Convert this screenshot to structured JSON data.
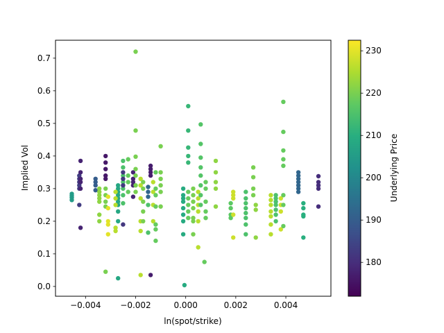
{
  "chart_data": {
    "type": "scatter",
    "title": "",
    "xlabel": "ln(spot/strike)",
    "ylabel": "Implied Vol",
    "colorbar_label": "Underlying Price",
    "colormap": "viridis",
    "xlim": [
      -0.0052,
      0.0058
    ],
    "ylim": [
      -0.03,
      0.755
    ],
    "clim": [
      172,
      232.5
    ],
    "xticks": [
      -0.004,
      -0.002,
      0.0,
      0.002,
      0.004
    ],
    "xtick_labels": [
      "−0.004",
      "−0.002",
      "0.000",
      "0.002",
      "0.004"
    ],
    "yticks": [
      0.0,
      0.1,
      0.2,
      0.3,
      0.4,
      0.5,
      0.6,
      0.7
    ],
    "ytick_labels": [
      "0.0",
      "0.1",
      "0.2",
      "0.3",
      "0.4",
      "0.5",
      "0.6",
      "0.7"
    ],
    "cticks": [
      180,
      190,
      200,
      210,
      220,
      230
    ],
    "ctick_labels": [
      "180",
      "190",
      "200",
      "210",
      "220",
      "230"
    ],
    "grid": false,
    "legend": "none",
    "points": [
      {
        "x": -0.00455,
        "y": 0.265,
        "c": 205
      },
      {
        "x": -0.00455,
        "y": 0.272,
        "c": 205
      },
      {
        "x": -0.00455,
        "y": 0.278,
        "c": 205
      },
      {
        "x": -0.00455,
        "y": 0.284,
        "c": 205
      },
      {
        "x": -0.00425,
        "y": 0.3,
        "c": 183
      },
      {
        "x": -0.00425,
        "y": 0.31,
        "c": 183
      },
      {
        "x": -0.00425,
        "y": 0.32,
        "c": 183
      },
      {
        "x": -0.00425,
        "y": 0.33,
        "c": 183
      },
      {
        "x": -0.00425,
        "y": 0.34,
        "c": 183
      },
      {
        "x": -0.00425,
        "y": 0.25,
        "c": 183
      },
      {
        "x": -0.0042,
        "y": 0.385,
        "c": 178
      },
      {
        "x": -0.0042,
        "y": 0.35,
        "c": 178
      },
      {
        "x": -0.0042,
        "y": 0.33,
        "c": 178
      },
      {
        "x": -0.0042,
        "y": 0.32,
        "c": 178
      },
      {
        "x": -0.0042,
        "y": 0.3,
        "c": 178
      },
      {
        "x": -0.0042,
        "y": 0.18,
        "c": 178
      },
      {
        "x": -0.0036,
        "y": 0.33,
        "c": 190
      },
      {
        "x": -0.0036,
        "y": 0.32,
        "c": 190
      },
      {
        "x": -0.0036,
        "y": 0.31,
        "c": 190
      },
      {
        "x": -0.0036,
        "y": 0.295,
        "c": 190
      },
      {
        "x": -0.00345,
        "y": 0.26,
        "c": 222
      },
      {
        "x": -0.00345,
        "y": 0.27,
        "c": 222
      },
      {
        "x": -0.00345,
        "y": 0.28,
        "c": 222
      },
      {
        "x": -0.00345,
        "y": 0.29,
        "c": 222
      },
      {
        "x": -0.00345,
        "y": 0.3,
        "c": 222
      },
      {
        "x": -0.00345,
        "y": 0.22,
        "c": 222
      },
      {
        "x": -0.00345,
        "y": 0.2,
        "c": 222
      },
      {
        "x": -0.0032,
        "y": 0.4,
        "c": 176
      },
      {
        "x": -0.0032,
        "y": 0.38,
        "c": 176
      },
      {
        "x": -0.0032,
        "y": 0.36,
        "c": 176
      },
      {
        "x": -0.0032,
        "y": 0.34,
        "c": 176
      },
      {
        "x": -0.0032,
        "y": 0.33,
        "c": 176
      },
      {
        "x": -0.0032,
        "y": 0.3,
        "c": 220
      },
      {
        "x": -0.0032,
        "y": 0.28,
        "c": 220
      },
      {
        "x": -0.0032,
        "y": 0.26,
        "c": 220
      },
      {
        "x": -0.0032,
        "y": 0.245,
        "c": 220
      },
      {
        "x": -0.0032,
        "y": 0.045,
        "c": 220
      },
      {
        "x": -0.0031,
        "y": 0.2,
        "c": 230
      },
      {
        "x": -0.0031,
        "y": 0.19,
        "c": 230
      },
      {
        "x": -0.0031,
        "y": 0.16,
        "c": 230
      },
      {
        "x": -0.0031,
        "y": 0.24,
        "c": 230
      },
      {
        "x": -0.0031,
        "y": 0.275,
        "c": 230
      },
      {
        "x": -0.0027,
        "y": 0.31,
        "c": 208
      },
      {
        "x": -0.0027,
        "y": 0.3,
        "c": 208
      },
      {
        "x": -0.0027,
        "y": 0.29,
        "c": 208
      },
      {
        "x": -0.0027,
        "y": 0.28,
        "c": 208
      },
      {
        "x": -0.0027,
        "y": 0.27,
        "c": 208
      },
      {
        "x": -0.0027,
        "y": 0.26,
        "c": 208
      },
      {
        "x": -0.0027,
        "y": 0.25,
        "c": 208
      },
      {
        "x": -0.0027,
        "y": 0.23,
        "c": 208
      },
      {
        "x": -0.0027,
        "y": 0.2,
        "c": 208
      },
      {
        "x": -0.0027,
        "y": 0.025,
        "c": 208
      },
      {
        "x": -0.0028,
        "y": 0.29,
        "c": 226
      },
      {
        "x": -0.0028,
        "y": 0.27,
        "c": 226
      },
      {
        "x": -0.0028,
        "y": 0.25,
        "c": 226
      },
      {
        "x": -0.0028,
        "y": 0.18,
        "c": 226
      },
      {
        "x": -0.0028,
        "y": 0.17,
        "c": 226
      },
      {
        "x": -0.0025,
        "y": 0.385,
        "c": 215
      },
      {
        "x": -0.0025,
        "y": 0.365,
        "c": 215
      },
      {
        "x": -0.0025,
        "y": 0.34,
        "c": 215
      },
      {
        "x": -0.0025,
        "y": 0.32,
        "c": 215
      },
      {
        "x": -0.0025,
        "y": 0.3,
        "c": 215
      },
      {
        "x": -0.0025,
        "y": 0.28,
        "c": 215
      },
      {
        "x": -0.0025,
        "y": 0.255,
        "c": 215
      },
      {
        "x": -0.0025,
        "y": 0.35,
        "c": 182
      },
      {
        "x": -0.0025,
        "y": 0.33,
        "c": 182
      },
      {
        "x": -0.0025,
        "y": 0.31,
        "c": 182
      },
      {
        "x": -0.0025,
        "y": 0.19,
        "c": 182
      },
      {
        "x": -0.0023,
        "y": 0.39,
        "c": 218
      },
      {
        "x": -0.0023,
        "y": 0.34,
        "c": 218
      },
      {
        "x": -0.0023,
        "y": 0.32,
        "c": 218
      },
      {
        "x": -0.0023,
        "y": 0.29,
        "c": 218
      },
      {
        "x": -0.0021,
        "y": 0.35,
        "c": 178
      },
      {
        "x": -0.0021,
        "y": 0.33,
        "c": 178
      },
      {
        "x": -0.0021,
        "y": 0.32,
        "c": 178
      },
      {
        "x": -0.0021,
        "y": 0.31,
        "c": 178
      },
      {
        "x": -0.0021,
        "y": 0.275,
        "c": 178
      },
      {
        "x": -0.002,
        "y": 0.72,
        "c": 220
      },
      {
        "x": -0.002,
        "y": 0.478,
        "c": 220
      },
      {
        "x": -0.002,
        "y": 0.398,
        "c": 220
      },
      {
        "x": -0.002,
        "y": 0.36,
        "c": 220
      },
      {
        "x": -0.002,
        "y": 0.34,
        "c": 220
      },
      {
        "x": -0.002,
        "y": 0.31,
        "c": 220
      },
      {
        "x": -0.002,
        "y": 0.29,
        "c": 220
      },
      {
        "x": -0.0018,
        "y": 0.33,
        "c": 226
      },
      {
        "x": -0.0018,
        "y": 0.31,
        "c": 226
      },
      {
        "x": -0.0018,
        "y": 0.27,
        "c": 226
      },
      {
        "x": -0.0018,
        "y": 0.2,
        "c": 226
      },
      {
        "x": -0.0018,
        "y": 0.17,
        "c": 226
      },
      {
        "x": -0.0018,
        "y": 0.035,
        "c": 226
      },
      {
        "x": -0.0017,
        "y": 0.32,
        "c": 220
      },
      {
        "x": -0.0017,
        "y": 0.3,
        "c": 220
      },
      {
        "x": -0.0017,
        "y": 0.26,
        "c": 220
      },
      {
        "x": -0.0017,
        "y": 0.23,
        "c": 220
      },
      {
        "x": -0.0017,
        "y": 0.2,
        "c": 220
      },
      {
        "x": -0.0015,
        "y": 0.305,
        "c": 192
      },
      {
        "x": -0.0015,
        "y": 0.29,
        "c": 192
      },
      {
        "x": -0.0015,
        "y": 0.275,
        "c": 192
      },
      {
        "x": -0.0015,
        "y": 0.25,
        "c": 215
      },
      {
        "x": -0.0015,
        "y": 0.165,
        "c": 215
      },
      {
        "x": -0.0014,
        "y": 0.37,
        "c": 177
      },
      {
        "x": -0.0014,
        "y": 0.36,
        "c": 177
      },
      {
        "x": -0.0014,
        "y": 0.35,
        "c": 177
      },
      {
        "x": -0.0014,
        "y": 0.34,
        "c": 177
      },
      {
        "x": -0.0014,
        "y": 0.035,
        "c": 177
      },
      {
        "x": -0.0013,
        "y": 0.32,
        "c": 226
      },
      {
        "x": -0.0013,
        "y": 0.29,
        "c": 226
      },
      {
        "x": -0.0013,
        "y": 0.25,
        "c": 226
      },
      {
        "x": -0.0013,
        "y": 0.2,
        "c": 226
      },
      {
        "x": -0.0012,
        "y": 0.35,
        "c": 218
      },
      {
        "x": -0.0012,
        "y": 0.3,
        "c": 218
      },
      {
        "x": -0.0012,
        "y": 0.28,
        "c": 218
      },
      {
        "x": -0.0012,
        "y": 0.245,
        "c": 218
      },
      {
        "x": -0.0012,
        "y": 0.19,
        "c": 218
      },
      {
        "x": -0.0012,
        "y": 0.175,
        "c": 218
      },
      {
        "x": -0.0012,
        "y": 0.14,
        "c": 218
      },
      {
        "x": -0.001,
        "y": 0.43,
        "c": 220
      },
      {
        "x": -0.001,
        "y": 0.35,
        "c": 220
      },
      {
        "x": -0.001,
        "y": 0.33,
        "c": 220
      },
      {
        "x": -0.001,
        "y": 0.31,
        "c": 220
      },
      {
        "x": -0.001,
        "y": 0.29,
        "c": 220
      },
      {
        "x": -0.001,
        "y": 0.245,
        "c": 220
      },
      {
        "x": -0.0001,
        "y": 0.3,
        "c": 209
      },
      {
        "x": -0.0001,
        "y": 0.28,
        "c": 209
      },
      {
        "x": -0.0001,
        "y": 0.27,
        "c": 209
      },
      {
        "x": -0.0001,
        "y": 0.26,
        "c": 209
      },
      {
        "x": -0.0001,
        "y": 0.24,
        "c": 209
      },
      {
        "x": -0.0001,
        "y": 0.22,
        "c": 209
      },
      {
        "x": -0.0001,
        "y": 0.2,
        "c": 209
      },
      {
        "x": -0.0001,
        "y": 0.16,
        "c": 209
      },
      {
        "x": -5e-05,
        "y": 0.004,
        "c": 209
      },
      {
        "x": 0.0001,
        "y": 0.553,
        "c": 212
      },
      {
        "x": 0.0001,
        "y": 0.478,
        "c": 212
      },
      {
        "x": 0.0001,
        "y": 0.426,
        "c": 212
      },
      {
        "x": 0.0001,
        "y": 0.4,
        "c": 212
      },
      {
        "x": 0.0001,
        "y": 0.38,
        "c": 212
      },
      {
        "x": 0.0001,
        "y": 0.29,
        "c": 218
      },
      {
        "x": 0.0001,
        "y": 0.27,
        "c": 218
      },
      {
        "x": 0.0001,
        "y": 0.25,
        "c": 218
      },
      {
        "x": 0.0001,
        "y": 0.23,
        "c": 218
      },
      {
        "x": 0.0001,
        "y": 0.21,
        "c": 218
      },
      {
        "x": 0.0003,
        "y": 0.3,
        "c": 220
      },
      {
        "x": 0.0003,
        "y": 0.28,
        "c": 220
      },
      {
        "x": 0.0003,
        "y": 0.26,
        "c": 220
      },
      {
        "x": 0.0003,
        "y": 0.24,
        "c": 220
      },
      {
        "x": 0.0003,
        "y": 0.21,
        "c": 220
      },
      {
        "x": 0.0003,
        "y": 0.2,
        "c": 220
      },
      {
        "x": 0.0003,
        "y": 0.16,
        "c": 220
      },
      {
        "x": 0.0005,
        "y": 0.29,
        "c": 226
      },
      {
        "x": 0.0005,
        "y": 0.27,
        "c": 226
      },
      {
        "x": 0.0005,
        "y": 0.25,
        "c": 226
      },
      {
        "x": 0.0005,
        "y": 0.23,
        "c": 226
      },
      {
        "x": 0.0005,
        "y": 0.2,
        "c": 226
      },
      {
        "x": 0.0005,
        "y": 0.12,
        "c": 226
      },
      {
        "x": 0.0006,
        "y": 0.497,
        "c": 216
      },
      {
        "x": 0.0006,
        "y": 0.437,
        "c": 216
      },
      {
        "x": 0.0006,
        "y": 0.395,
        "c": 216
      },
      {
        "x": 0.0006,
        "y": 0.365,
        "c": 216
      },
      {
        "x": 0.0006,
        "y": 0.34,
        "c": 216
      },
      {
        "x": 0.0006,
        "y": 0.31,
        "c": 216
      },
      {
        "x": 0.0006,
        "y": 0.28,
        "c": 216
      },
      {
        "x": 0.0006,
        "y": 0.25,
        "c": 216
      },
      {
        "x": 0.0008,
        "y": 0.32,
        "c": 218
      },
      {
        "x": 0.0008,
        "y": 0.3,
        "c": 218
      },
      {
        "x": 0.0008,
        "y": 0.26,
        "c": 218
      },
      {
        "x": 0.0008,
        "y": 0.23,
        "c": 218
      },
      {
        "x": 0.0008,
        "y": 0.21,
        "c": 218
      },
      {
        "x": 0.00075,
        "y": 0.075,
        "c": 218
      },
      {
        "x": 0.0012,
        "y": 0.385,
        "c": 222
      },
      {
        "x": 0.0012,
        "y": 0.35,
        "c": 222
      },
      {
        "x": 0.0012,
        "y": 0.32,
        "c": 222
      },
      {
        "x": 0.0012,
        "y": 0.3,
        "c": 222
      },
      {
        "x": 0.0012,
        "y": 0.245,
        "c": 222
      },
      {
        "x": 0.0018,
        "y": 0.255,
        "c": 217
      },
      {
        "x": 0.0018,
        "y": 0.24,
        "c": 217
      },
      {
        "x": 0.0018,
        "y": 0.22,
        "c": 217
      },
      {
        "x": 0.0018,
        "y": 0.21,
        "c": 217
      },
      {
        "x": 0.0019,
        "y": 0.29,
        "c": 228
      },
      {
        "x": 0.0019,
        "y": 0.28,
        "c": 228
      },
      {
        "x": 0.0019,
        "y": 0.27,
        "c": 228
      },
      {
        "x": 0.0019,
        "y": 0.22,
        "c": 228
      },
      {
        "x": 0.0019,
        "y": 0.15,
        "c": 228
      },
      {
        "x": 0.0024,
        "y": 0.29,
        "c": 215
      },
      {
        "x": 0.0024,
        "y": 0.27,
        "c": 215
      },
      {
        "x": 0.0024,
        "y": 0.255,
        "c": 215
      },
      {
        "x": 0.0024,
        "y": 0.24,
        "c": 215
      },
      {
        "x": 0.0024,
        "y": 0.225,
        "c": 215
      },
      {
        "x": 0.0024,
        "y": 0.21,
        "c": 215
      },
      {
        "x": 0.0024,
        "y": 0.19,
        "c": 215
      },
      {
        "x": 0.0024,
        "y": 0.16,
        "c": 215
      },
      {
        "x": 0.0027,
        "y": 0.365,
        "c": 220
      },
      {
        "x": 0.0027,
        "y": 0.335,
        "c": 220
      },
      {
        "x": 0.0027,
        "y": 0.3,
        "c": 220
      },
      {
        "x": 0.0027,
        "y": 0.28,
        "c": 220
      },
      {
        "x": 0.0028,
        "y": 0.25,
        "c": 222
      },
      {
        "x": 0.0028,
        "y": 0.235,
        "c": 222
      },
      {
        "x": 0.0028,
        "y": 0.15,
        "c": 222
      },
      {
        "x": 0.0034,
        "y": 0.28,
        "c": 226
      },
      {
        "x": 0.0034,
        "y": 0.265,
        "c": 226
      },
      {
        "x": 0.0034,
        "y": 0.25,
        "c": 226
      },
      {
        "x": 0.0034,
        "y": 0.23,
        "c": 226
      },
      {
        "x": 0.0034,
        "y": 0.215,
        "c": 226
      },
      {
        "x": 0.0034,
        "y": 0.19,
        "c": 226
      },
      {
        "x": 0.0034,
        "y": 0.16,
        "c": 226
      },
      {
        "x": 0.0036,
        "y": 0.28,
        "c": 215
      },
      {
        "x": 0.0036,
        "y": 0.27,
        "c": 215
      },
      {
        "x": 0.0036,
        "y": 0.26,
        "c": 215
      },
      {
        "x": 0.0036,
        "y": 0.25,
        "c": 215
      },
      {
        "x": 0.0036,
        "y": 0.235,
        "c": 215
      },
      {
        "x": 0.0036,
        "y": 0.22,
        "c": 215
      },
      {
        "x": 0.0036,
        "y": 0.2,
        "c": 215
      },
      {
        "x": 0.0038,
        "y": 0.27,
        "c": 228
      },
      {
        "x": 0.0038,
        "y": 0.25,
        "c": 228
      },
      {
        "x": 0.0038,
        "y": 0.23,
        "c": 228
      },
      {
        "x": 0.0038,
        "y": 0.175,
        "c": 228
      },
      {
        "x": 0.0039,
        "y": 0.566,
        "c": 218
      },
      {
        "x": 0.0039,
        "y": 0.474,
        "c": 218
      },
      {
        "x": 0.0039,
        "y": 0.417,
        "c": 218
      },
      {
        "x": 0.0039,
        "y": 0.39,
        "c": 218
      },
      {
        "x": 0.0039,
        "y": 0.37,
        "c": 218
      },
      {
        "x": 0.0039,
        "y": 0.28,
        "c": 218
      },
      {
        "x": 0.0039,
        "y": 0.25,
        "c": 218
      },
      {
        "x": 0.0039,
        "y": 0.185,
        "c": 218
      },
      {
        "x": 0.0045,
        "y": 0.35,
        "c": 192
      },
      {
        "x": 0.0045,
        "y": 0.34,
        "c": 192
      },
      {
        "x": 0.0045,
        "y": 0.33,
        "c": 192
      },
      {
        "x": 0.0045,
        "y": 0.32,
        "c": 192
      },
      {
        "x": 0.0045,
        "y": 0.31,
        "c": 192
      },
      {
        "x": 0.0045,
        "y": 0.3,
        "c": 192
      },
      {
        "x": 0.0045,
        "y": 0.29,
        "c": 192
      },
      {
        "x": 0.0047,
        "y": 0.255,
        "c": 210
      },
      {
        "x": 0.0047,
        "y": 0.24,
        "c": 210
      },
      {
        "x": 0.0047,
        "y": 0.22,
        "c": 210
      },
      {
        "x": 0.0047,
        "y": 0.215,
        "c": 210
      },
      {
        "x": 0.0047,
        "y": 0.15,
        "c": 210
      },
      {
        "x": 0.0053,
        "y": 0.338,
        "c": 180
      },
      {
        "x": 0.0053,
        "y": 0.32,
        "c": 180
      },
      {
        "x": 0.0053,
        "y": 0.31,
        "c": 180
      },
      {
        "x": 0.0053,
        "y": 0.3,
        "c": 180
      },
      {
        "x": 0.0053,
        "y": 0.245,
        "c": 180
      }
    ]
  }
}
